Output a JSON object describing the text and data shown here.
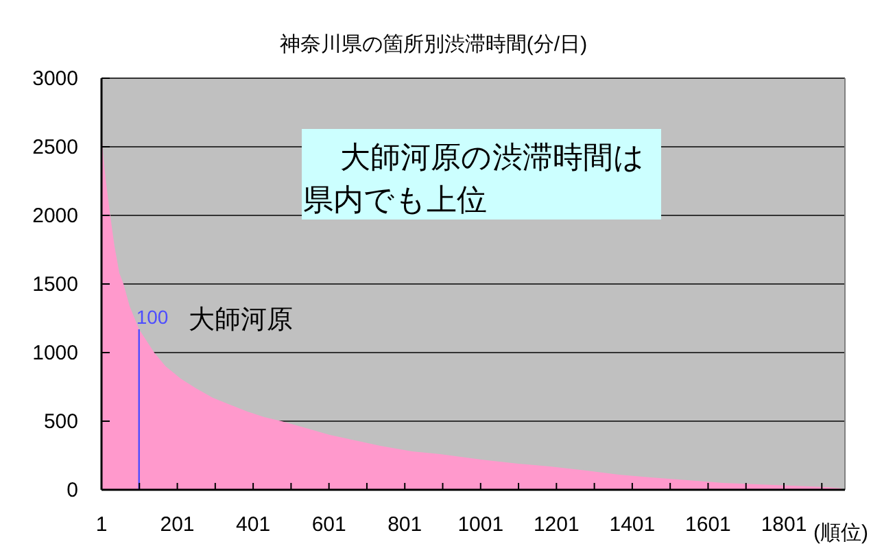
{
  "chart_data": {
    "type": "area",
    "title": "神奈川県の箇所別渋滞時間(分/日)",
    "xlabel": "(順位)",
    "xlim": [
      1,
      1962
    ],
    "xticks": [
      1,
      {
        "value": 101,
        "label": null
      },
      201,
      {
        "value": 301,
        "label": null
      },
      401,
      {
        "value": 501,
        "label": null
      },
      601,
      {
        "value": 701,
        "label": null
      },
      801,
      {
        "value": 901,
        "label": null
      },
      1001,
      {
        "value": 1101,
        "label": null
      },
      1201,
      {
        "value": 1301,
        "label": null
      },
      1401,
      {
        "value": 1501,
        "label": null
      },
      1601,
      {
        "value": 1701,
        "label": null
      },
      1801,
      {
        "value": 1901,
        "label": null
      }
    ],
    "ylim": [
      0,
      3000
    ],
    "yticks": [
      0,
      500,
      1000,
      1500,
      2000,
      2500,
      3000
    ],
    "grid": "y",
    "series": [
      {
        "color": "#ff99cc",
        "x": [
          1,
          5,
          13,
          24,
          35,
          48,
          59,
          75,
          100,
          140,
          170,
          210,
          250,
          295,
          340,
          386,
          430,
          476,
          540,
          603,
          670,
          737,
          820,
          894,
          1003,
          1100,
          1184,
          1280,
          1366,
          1450,
          1547,
          1640,
          1729,
          1820,
          1910,
          1953
        ],
        "values": [
          2620,
          2450,
          2240,
          2000,
          1780,
          1580,
          1500,
          1340,
          1170,
          1000,
          900,
          810,
          740,
          670,
          620,
          570,
          530,
          500,
          450,
          400,
          360,
          320,
          280,
          260,
          220,
          190,
          170,
          140,
          110,
          90,
          70,
          50,
          40,
          30,
          20,
          10
        ]
      }
    ],
    "ref_lines": [
      {
        "axis": "x",
        "value": 100,
        "label": "100",
        "color": "#4d4dff"
      }
    ],
    "annotations": [
      "大師河原の渋滞時間は県内でも上位",
      {
        "text": "大師河原",
        "x": 100,
        "y": 1170
      }
    ]
  }
}
